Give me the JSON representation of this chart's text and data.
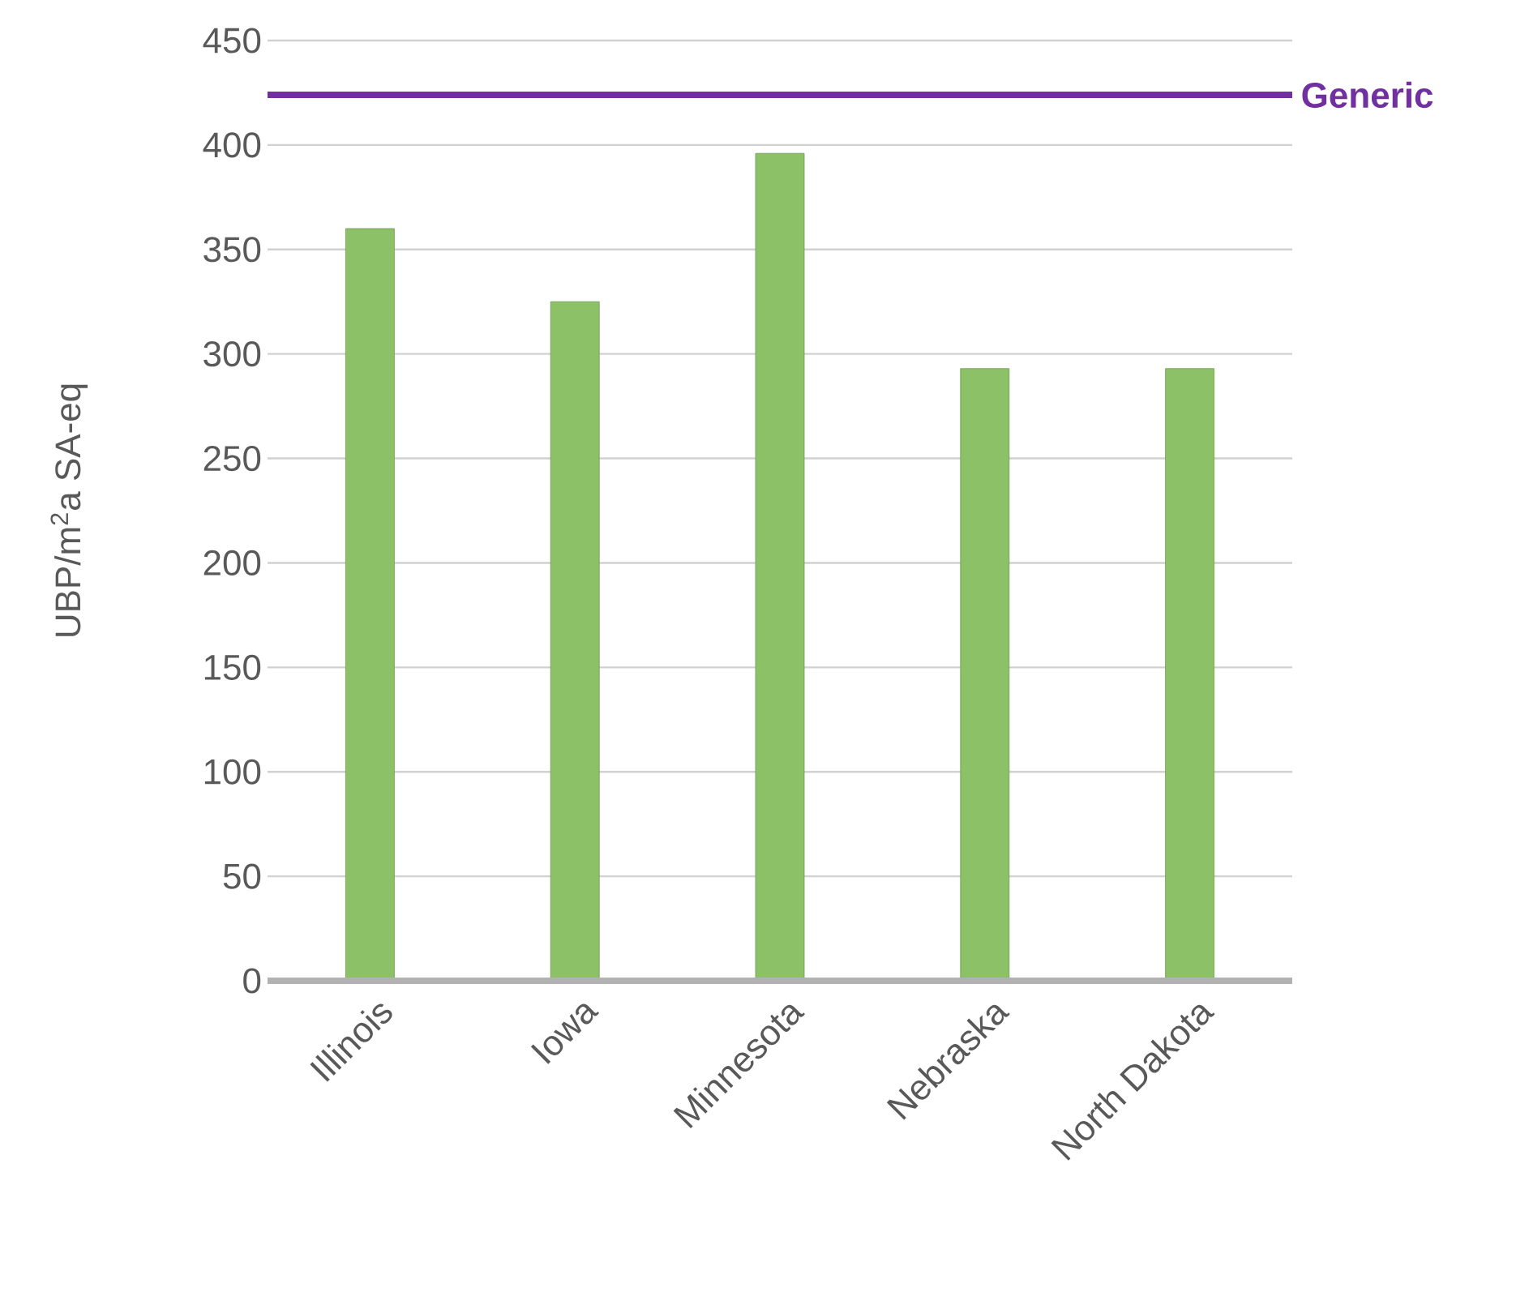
{
  "chart_data": {
    "type": "bar",
    "ylabel": "UBP/m$^{2}$a SA-eq",
    "categories": [
      "Illinois",
      "Iowa",
      "Minnesota",
      "Nebraska",
      "North Dakota"
    ],
    "values": [
      360,
      325,
      396,
      293,
      293
    ],
    "color": "#8cc168",
    "ylim": [
      0,
      450
    ],
    "yticks": [
      0,
      50,
      100,
      150,
      200,
      250,
      300,
      350,
      400,
      450
    ],
    "grid": "y",
    "ref_lines": [
      {
        "axis": "y",
        "value": 424,
        "label": "Generic",
        "color": "#7030a0"
      }
    ]
  }
}
